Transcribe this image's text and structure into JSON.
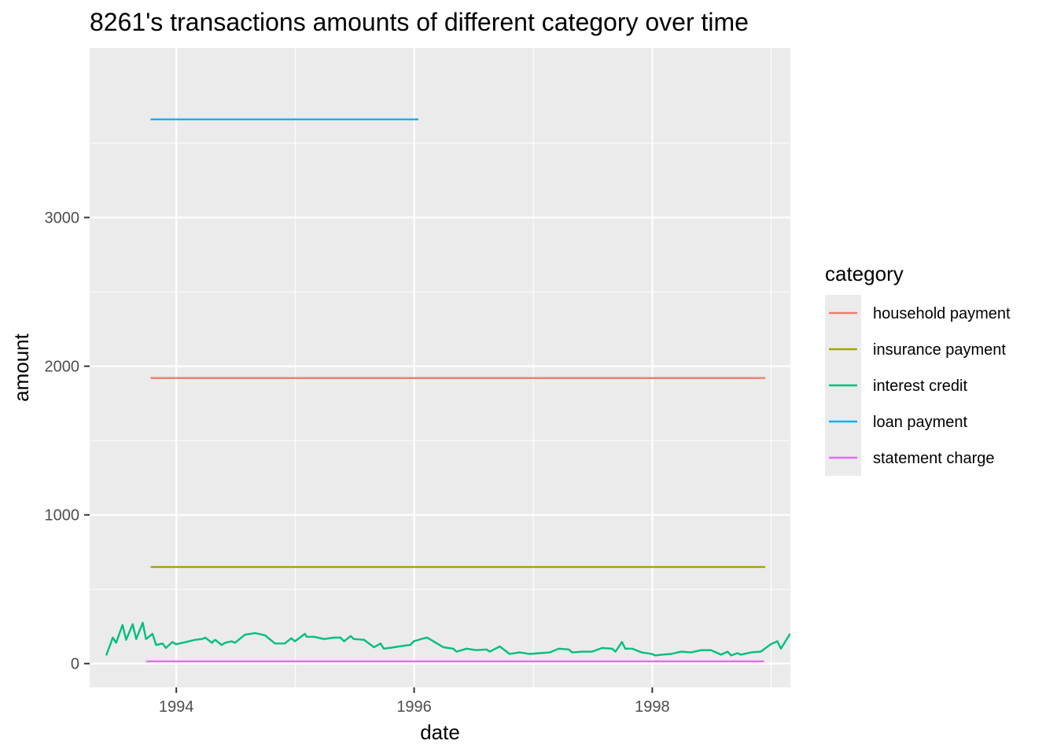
{
  "chart_data": {
    "type": "line",
    "title": "8261's transactions amounts of different category over time",
    "xlabel": "date",
    "ylabel": "amount",
    "x_type": "date",
    "xlim": [
      "1993-04-10",
      "1999-03-01"
    ],
    "ylim": [
      -160,
      4140
    ],
    "x_ticks": [
      "1994-01-01",
      "1996-01-01",
      "1998-01-01"
    ],
    "x_tick_labels": [
      "1994",
      "1996",
      "1998"
    ],
    "y_ticks": [
      0,
      1000,
      2000,
      3000
    ],
    "y_tick_labels": [
      "0",
      "1000",
      "2000",
      "3000"
    ],
    "grid": true,
    "legend": {
      "title": "category",
      "position": "right"
    },
    "series": [
      {
        "name": "household payment",
        "color": "#F8766D",
        "points": [
          [
            "1993-10-14",
            1920
          ],
          [
            "1998-12-14",
            1920
          ]
        ]
      },
      {
        "name": "insurance payment",
        "color": "#A3A500",
        "points": [
          [
            "1993-10-14",
            650
          ],
          [
            "1998-12-14",
            650
          ]
        ]
      },
      {
        "name": "interest credit",
        "color": "#00BF7D",
        "points": [
          [
            "1993-05-31",
            55
          ],
          [
            "1993-06-20",
            175
          ],
          [
            "1993-06-30",
            140
          ],
          [
            "1993-07-20",
            260
          ],
          [
            "1993-07-31",
            160
          ],
          [
            "1993-08-20",
            265
          ],
          [
            "1993-08-31",
            165
          ],
          [
            "1993-09-20",
            275
          ],
          [
            "1993-09-30",
            165
          ],
          [
            "1993-10-20",
            200
          ],
          [
            "1993-10-31",
            125
          ],
          [
            "1993-11-20",
            135
          ],
          [
            "1993-11-30",
            105
          ],
          [
            "1993-12-20",
            145
          ],
          [
            "1993-12-31",
            130
          ],
          [
            "1994-01-31",
            145
          ],
          [
            "1994-02-28",
            160
          ],
          [
            "1994-03-20",
            165
          ],
          [
            "1994-03-31",
            175
          ],
          [
            "1994-04-20",
            140
          ],
          [
            "1994-04-30",
            160
          ],
          [
            "1994-05-20",
            125
          ],
          [
            "1994-05-31",
            140
          ],
          [
            "1994-06-20",
            150
          ],
          [
            "1994-06-30",
            140
          ],
          [
            "1994-07-31",
            195
          ],
          [
            "1994-08-31",
            205
          ],
          [
            "1994-09-30",
            190
          ],
          [
            "1994-10-31",
            135
          ],
          [
            "1994-11-30",
            135
          ],
          [
            "1994-12-20",
            170
          ],
          [
            "1994-12-31",
            150
          ],
          [
            "1995-01-31",
            200
          ],
          [
            "1995-02-05",
            180
          ],
          [
            "1995-02-28",
            180
          ],
          [
            "1995-03-31",
            165
          ],
          [
            "1995-04-30",
            175
          ],
          [
            "1995-05-20",
            175
          ],
          [
            "1995-05-31",
            150
          ],
          [
            "1995-06-20",
            185
          ],
          [
            "1995-06-30",
            165
          ],
          [
            "1995-07-31",
            160
          ],
          [
            "1995-08-31",
            110
          ],
          [
            "1995-09-20",
            135
          ],
          [
            "1995-09-30",
            100
          ],
          [
            "1995-10-31",
            110
          ],
          [
            "1995-11-30",
            120
          ],
          [
            "1995-12-20",
            125
          ],
          [
            "1995-12-31",
            150
          ],
          [
            "1996-01-31",
            170
          ],
          [
            "1996-02-10",
            175
          ],
          [
            "1996-03-31",
            110
          ],
          [
            "1996-04-30",
            100
          ],
          [
            "1996-05-10",
            80
          ],
          [
            "1996-06-10",
            100
          ],
          [
            "1996-07-10",
            90
          ],
          [
            "1996-08-10",
            95
          ],
          [
            "1996-08-20",
            80
          ],
          [
            "1996-09-20",
            115
          ],
          [
            "1996-10-20",
            65
          ],
          [
            "1996-11-20",
            75
          ],
          [
            "1996-12-20",
            65
          ],
          [
            "1997-02-20",
            75
          ],
          [
            "1997-03-20",
            100
          ],
          [
            "1997-04-20",
            95
          ],
          [
            "1997-04-30",
            75
          ],
          [
            "1997-05-31",
            80
          ],
          [
            "1997-06-30",
            80
          ],
          [
            "1997-07-31",
            105
          ],
          [
            "1997-08-31",
            100
          ],
          [
            "1997-09-10",
            80
          ],
          [
            "1997-09-30",
            145
          ],
          [
            "1997-10-10",
            100
          ],
          [
            "1997-10-31",
            100
          ],
          [
            "1997-11-30",
            75
          ],
          [
            "1997-12-31",
            65
          ],
          [
            "1998-01-10",
            55
          ],
          [
            "1998-01-31",
            60
          ],
          [
            "1998-02-28",
            65
          ],
          [
            "1998-03-31",
            80
          ],
          [
            "1998-04-30",
            75
          ],
          [
            "1998-05-31",
            90
          ],
          [
            "1998-06-30",
            90
          ],
          [
            "1998-07-31",
            60
          ],
          [
            "1998-08-20",
            80
          ],
          [
            "1998-08-31",
            55
          ],
          [
            "1998-09-20",
            70
          ],
          [
            "1998-09-30",
            60
          ],
          [
            "1998-10-31",
            75
          ],
          [
            "1998-11-30",
            80
          ],
          [
            "1998-12-31",
            130
          ],
          [
            "1999-01-20",
            150
          ],
          [
            "1999-01-31",
            100
          ],
          [
            "1999-02-28",
            200
          ]
        ]
      },
      {
        "name": "loan payment",
        "color": "#00B0F6",
        "points": [
          [
            "1993-10-14",
            3660
          ],
          [
            "1996-01-14",
            3660
          ]
        ]
      },
      {
        "name": "statement charge",
        "color": "#E76BF3",
        "points": [
          [
            "1993-10-01",
            15
          ],
          [
            "1998-12-10",
            15
          ]
        ]
      }
    ]
  }
}
